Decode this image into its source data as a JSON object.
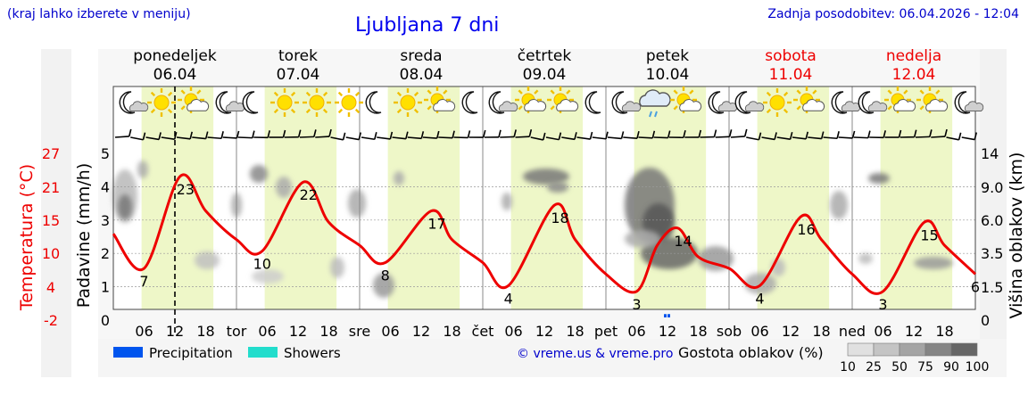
{
  "header": {
    "region_hint": "(kraj lahko izberete v meniju)",
    "title": "Ljubljana 7 dni",
    "updated": "Zadnja posodobitev: 06.04.2026 - 12:04"
  },
  "days": [
    {
      "name": "ponedeljek",
      "date": "06.04",
      "weekend": false,
      "abbr": ""
    },
    {
      "name": "torek",
      "date": "07.04",
      "weekend": false,
      "abbr": "tor"
    },
    {
      "name": "sreda",
      "date": "08.04",
      "weekend": false,
      "abbr": "sre"
    },
    {
      "name": "četrtek",
      "date": "09.04",
      "weekend": false,
      "abbr": "čet"
    },
    {
      "name": "petek",
      "date": "10.04",
      "weekend": false,
      "abbr": "pet"
    },
    {
      "name": "sobota",
      "date": "11.04",
      "weekend": true,
      "abbr": "sob"
    },
    {
      "name": "nedelja",
      "date": "12.04",
      "weekend": true,
      "abbr": "ned"
    }
  ],
  "hour_ticks": [
    "06",
    "12",
    "18"
  ],
  "icons": [
    [
      "moon-cloud",
      "sun",
      "sun-cloud",
      "moon-cloud"
    ],
    [
      "moon",
      "sun",
      "sun",
      "sun"
    ],
    [
      "moon",
      "sun",
      "sun-cloud",
      "moon"
    ],
    [
      "moon-cloud",
      "sun-cloud",
      "sun-cloud",
      "moon"
    ],
    [
      "moon-cloud",
      "rain-cloud",
      "sun-cloud",
      "moon-cloud"
    ],
    [
      "moon-cloud",
      "sun",
      "sun-cloud",
      "moon-cloud"
    ],
    [
      "moon-cloud",
      "sun-cloud",
      "sun-cloud",
      "moon-cloud"
    ]
  ],
  "colors": {
    "temperature": "#ee0000",
    "daylight": "#eef7c8",
    "precipitation": "#0055ee",
    "showers": "#22ddcc",
    "link": "#0000cc",
    "weekend": "#ee0000"
  },
  "chart_data": {
    "type": "line",
    "title": "Ljubljana 7 dni",
    "y_left_outer_label": "Temperatura (°C)",
    "y_left_outer_ticks": [
      "27",
      "21",
      "15",
      "10",
      "4",
      "-2"
    ],
    "y_left_label": "Padavine (mm/h)",
    "y_left_ticks": [
      "0",
      "1",
      "2",
      "3",
      "4",
      "5"
    ],
    "y_right_label": "Višina oblakov (km)",
    "y_right_ticks": [
      "0",
      "1.5",
      "3.5",
      "6.0",
      "9.0",
      "14"
    ],
    "ylim_temperature": [
      -2,
      27
    ],
    "current_time": "06.04 12:04",
    "series": [
      {
        "name": "Temperatura",
        "unit": "°C",
        "x": [
          "06.04 00",
          "06.04 06",
          "06.04 13",
          "06.04 18",
          "07.04 00",
          "07.04 05",
          "07.04 13",
          "07.04 18",
          "08.04 00",
          "08.04 05",
          "08.04 14",
          "08.04 18",
          "09.04 00",
          "09.04 05",
          "09.04 14",
          "09.04 18",
          "10.04 00",
          "10.04 06",
          "10.04 10",
          "10.04 14",
          "10.04 18",
          "11.04 00",
          "11.04 06",
          "11.04 14",
          "11.04 18",
          "12.04 00",
          "12.04 06",
          "12.04 14",
          "12.04 18",
          "12.04 24"
        ],
        "y": [
          13,
          7,
          23,
          17,
          12,
          10,
          22,
          15,
          11,
          8,
          17,
          12,
          8,
          4,
          18,
          12,
          6,
          3,
          11,
          14,
          9,
          7,
          4,
          16,
          12,
          6,
          3,
          15,
          11,
          6
        ]
      }
    ],
    "temperature_labels": [
      {
        "x": "06.04 06",
        "value": "7"
      },
      {
        "x": "06.04 13",
        "value": "23"
      },
      {
        "x": "07.04 05",
        "value": "10"
      },
      {
        "x": "07.04 13",
        "value": "22"
      },
      {
        "x": "08.04 05",
        "value": "8"
      },
      {
        "x": "08.04 14",
        "value": "17"
      },
      {
        "x": "09.04 05",
        "value": "4"
      },
      {
        "x": "09.04 14",
        "value": "18"
      },
      {
        "x": "10.04 06",
        "value": "3"
      },
      {
        "x": "10.04 14",
        "value": "14"
      },
      {
        "x": "11.04 06",
        "value": "4"
      },
      {
        "x": "11.04 14",
        "value": "16"
      },
      {
        "x": "12.04 06",
        "value": "3"
      },
      {
        "x": "12.04 14",
        "value": "15"
      },
      {
        "x": "12.04 24",
        "value": "6"
      }
    ],
    "precipitation": [
      {
        "x": "10.04 12",
        "value": 0.1
      }
    ],
    "legend": [
      "Precipitation",
      "Showers"
    ],
    "cloud_legend": {
      "label": "Gostota oblakov (%)",
      "values": [
        "10",
        "25",
        "50",
        "75",
        "90",
        "100"
      ]
    },
    "credit": "© vreme.us & vreme.pro",
    "grid": true
  }
}
